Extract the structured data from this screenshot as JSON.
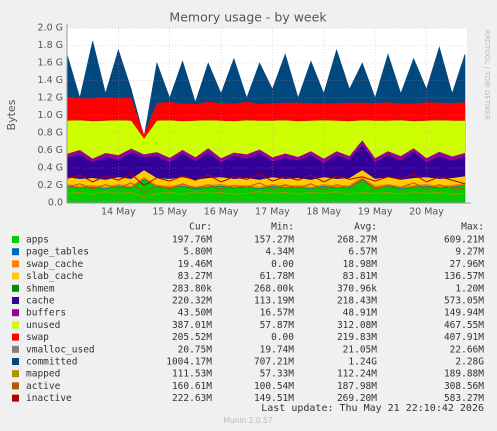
{
  "chart_data": {
    "type": "area",
    "title": "Memory usage - by week",
    "y_label": "Bytes",
    "side_text": "RRDTOOL / TOBI OETIKER",
    "last_update": "Last update: Thu May 21 22:10:42 2026",
    "footer": "Munin 2.0.57",
    "stat_headers": [
      "Cur:",
      "Min:",
      "Avg:",
      "Max:"
    ],
    "categories": [
      null,
      null,
      null,
      null,
      "14 May",
      null,
      null,
      null,
      "15 May",
      null,
      null,
      null,
      "16 May",
      null,
      null,
      null,
      "17 May",
      null,
      null,
      null,
      "18 May",
      null,
      null,
      null,
      "19 May",
      null,
      null,
      null,
      "20 May",
      null,
      null,
      null
    ],
    "ylim": [
      0,
      2.0
    ],
    "yticks": [
      {
        "value": 0,
        "label": "0.0"
      },
      {
        "value": 0.2,
        "label": "0.2 G"
      },
      {
        "value": 0.4,
        "label": "0.4 G"
      },
      {
        "value": 0.6,
        "label": "0.6 G"
      },
      {
        "value": 0.8,
        "label": "0.8 G"
      },
      {
        "value": 1.0,
        "label": "1.0 G"
      },
      {
        "value": 1.2,
        "label": "1.2 G"
      },
      {
        "value": 1.4,
        "label": "1.4 G"
      },
      {
        "value": 1.6,
        "label": "1.6 G"
      },
      {
        "value": 1.8,
        "label": "1.8 G"
      },
      {
        "value": 2.0,
        "label": "2.0 G"
      }
    ],
    "grid": true,
    "series": [
      {
        "name": "apps",
        "color": "#00cc00",
        "draw": "stack",
        "cur": "197.76M",
        "min": "157.27M",
        "avg": "268.27M",
        "max": "609.21M",
        "values": [
          0.19,
          0.17,
          0.18,
          0.16,
          0.19,
          0.17,
          0.27,
          0.18,
          0.17,
          0.19,
          0.16,
          0.18,
          0.19,
          0.17,
          0.18,
          0.16,
          0.19,
          0.17,
          0.18,
          0.16,
          0.19,
          0.17,
          0.18,
          0.27,
          0.17,
          0.19,
          0.16,
          0.18,
          0.19,
          0.17,
          0.18,
          0.2
        ]
      },
      {
        "name": "page_tables",
        "color": "#0066b3",
        "draw": "stack",
        "cur": "5.80M",
        "min": "4.34M",
        "avg": "6.57M",
        "max": "9.27M",
        "values": [
          0.006,
          0.006,
          0.006,
          0.006,
          0.006,
          0.006,
          0.006,
          0.006,
          0.006,
          0.006,
          0.006,
          0.006,
          0.006,
          0.006,
          0.006,
          0.006,
          0.006,
          0.006,
          0.006,
          0.006,
          0.006,
          0.006,
          0.006,
          0.006,
          0.006,
          0.006,
          0.006,
          0.006,
          0.006,
          0.006,
          0.006,
          0.006
        ]
      },
      {
        "name": "swap_cache",
        "color": "#ff8000",
        "draw": "stack",
        "cur": "19.46M",
        "min": "0.00",
        "avg": "18.98M",
        "max": "27.96M",
        "values": [
          0.02,
          0.02,
          0.02,
          0.02,
          0.02,
          0.02,
          0.02,
          0.02,
          0.02,
          0.02,
          0.02,
          0.02,
          0.02,
          0.02,
          0.02,
          0.02,
          0.02,
          0.02,
          0.02,
          0.02,
          0.02,
          0.02,
          0.02,
          0.02,
          0.02,
          0.02,
          0.02,
          0.02,
          0.02,
          0.02,
          0.02,
          0.02
        ]
      },
      {
        "name": "slab_cache",
        "color": "#ffcc00",
        "draw": "stack",
        "cur": "83.27M",
        "min": "61.78M",
        "avg": "83.81M",
        "max": "136.57M",
        "values": [
          0.08,
          0.08,
          0.08,
          0.08,
          0.08,
          0.08,
          0.08,
          0.08,
          0.08,
          0.08,
          0.08,
          0.08,
          0.08,
          0.08,
          0.08,
          0.08,
          0.08,
          0.08,
          0.08,
          0.08,
          0.08,
          0.08,
          0.08,
          0.08,
          0.08,
          0.08,
          0.08,
          0.08,
          0.08,
          0.08,
          0.08,
          0.08
        ]
      },
      {
        "name": "shmem",
        "color": "#008f00",
        "draw": "stack",
        "cur": "283.80k",
        "min": "268.00k",
        "avg": "370.96k",
        "max": "1.20M",
        "values": [
          0.0003,
          0.0003,
          0.0003,
          0.0003,
          0.0003,
          0.0003,
          0.0003,
          0.0003,
          0.0003,
          0.0003,
          0.0003,
          0.0003,
          0.0003,
          0.0003,
          0.0003,
          0.0003,
          0.0003,
          0.0003,
          0.0003,
          0.0003,
          0.0003,
          0.0003,
          0.0003,
          0.0003,
          0.0003,
          0.0003,
          0.0003,
          0.0003,
          0.0003,
          0.0003,
          0.0003,
          0.0003
        ]
      },
      {
        "name": "cache",
        "color": "#330099",
        "draw": "stack",
        "cur": "220.32M",
        "min": "113.19M",
        "avg": "218.43M",
        "max": "573.05M",
        "values": [
          0.22,
          0.28,
          0.18,
          0.26,
          0.2,
          0.3,
          0.15,
          0.25,
          0.19,
          0.27,
          0.21,
          0.29,
          0.17,
          0.26,
          0.22,
          0.3,
          0.18,
          0.24,
          0.2,
          0.28,
          0.16,
          0.27,
          0.21,
          0.29,
          0.19,
          0.25,
          0.22,
          0.3,
          0.17,
          0.26,
          0.2,
          0.22
        ]
      },
      {
        "name": "buffers",
        "color": "#990099",
        "draw": "stack",
        "cur": "43.50M",
        "min": "16.57M",
        "avg": "48.91M",
        "max": "149.94M",
        "values": [
          0.045,
          0.05,
          0.04,
          0.045,
          0.05,
          0.045,
          0.03,
          0.045,
          0.05,
          0.04,
          0.045,
          0.05,
          0.045,
          0.04,
          0.05,
          0.045,
          0.045,
          0.05,
          0.04,
          0.045,
          0.05,
          0.045,
          0.04,
          0.05,
          0.045,
          0.045,
          0.05,
          0.04,
          0.045,
          0.05,
          0.045,
          0.045
        ]
      },
      {
        "name": "unused",
        "color": "#ccff00",
        "draw": "stack",
        "cur": "387.01M",
        "min": "57.87M",
        "avg": "312.08M",
        "max": "467.55M",
        "values": [
          0.38,
          0.34,
          0.43,
          0.37,
          0.4,
          0.32,
          0.18,
          0.36,
          0.43,
          0.33,
          0.42,
          0.32,
          0.43,
          0.36,
          0.39,
          0.33,
          0.42,
          0.38,
          0.41,
          0.35,
          0.44,
          0.35,
          0.4,
          0.23,
          0.43,
          0.35,
          0.41,
          0.31,
          0.43,
          0.36,
          0.41,
          0.37
        ]
      },
      {
        "name": "swap",
        "color": "#ff0000",
        "draw": "stack",
        "cur": "205.52M",
        "min": "0.00",
        "avg": "219.83M",
        "max": "407.91M",
        "values": [
          0.27,
          0.25,
          0.26,
          0.27,
          0.25,
          0.26,
          0.05,
          0.2,
          0.21,
          0.2,
          0.19,
          0.21,
          0.2,
          0.2,
          0.21,
          0.19,
          0.2,
          0.2,
          0.21,
          0.2,
          0.19,
          0.2,
          0.21,
          0.2,
          0.2,
          0.21,
          0.19,
          0.2,
          0.21,
          0.2,
          0.2,
          0.21
        ]
      },
      {
        "name": "vmalloc_used",
        "color": "#808080",
        "draw": "line",
        "cur": "20.75M",
        "min": "19.74M",
        "avg": "21.05M",
        "max": "22.66M",
        "values": [
          0.02,
          0.02,
          0.02,
          0.02,
          0.02,
          0.02,
          0.02,
          0.02,
          0.02,
          0.02,
          0.02,
          0.02,
          0.02,
          0.02,
          0.02,
          0.02,
          0.02,
          0.02,
          0.02,
          0.02,
          0.02,
          0.02,
          0.02,
          0.02,
          0.02,
          0.02,
          0.02,
          0.02,
          0.02,
          0.02,
          0.02,
          0.02
        ]
      },
      {
        "name": "committed",
        "color": "#00487d",
        "draw": "back",
        "cur": "1004.17M",
        "min": "707.21M",
        "avg": "1.24G",
        "max": "2.28G",
        "values": [
          1.7,
          1.2,
          1.85,
          1.25,
          1.75,
          1.3,
          0.75,
          1.6,
          1.2,
          1.62,
          1.15,
          1.6,
          1.25,
          1.65,
          1.2,
          1.6,
          1.3,
          1.7,
          1.2,
          1.62,
          1.25,
          1.75,
          1.3,
          1.6,
          1.2,
          1.7,
          1.25,
          1.65,
          1.3,
          1.78,
          1.25,
          1.7
        ]
      },
      {
        "name": "mapped",
        "color": "#b38f00",
        "draw": "line",
        "cur": "111.53M",
        "min": "57.33M",
        "avg": "112.24M",
        "max": "189.88M",
        "values": [
          0.11,
          0.12,
          0.1,
          0.13,
          0.11,
          0.12,
          0.07,
          0.11,
          0.12,
          0.1,
          0.13,
          0.11,
          0.12,
          0.1,
          0.11,
          0.13,
          0.11,
          0.12,
          0.1,
          0.12,
          0.11,
          0.13,
          0.1,
          0.12,
          0.11,
          0.12,
          0.1,
          0.13,
          0.11,
          0.12,
          0.1,
          0.11
        ]
      },
      {
        "name": "active",
        "color": "#b35a00",
        "draw": "line",
        "cur": "160.61M",
        "min": "100.54M",
        "avg": "187.98M",
        "max": "308.56M",
        "values": [
          0.18,
          0.22,
          0.16,
          0.21,
          0.17,
          0.23,
          0.12,
          0.2,
          0.16,
          0.22,
          0.17,
          0.21,
          0.16,
          0.2,
          0.18,
          0.23,
          0.16,
          0.21,
          0.17,
          0.22,
          0.15,
          0.21,
          0.17,
          0.26,
          0.16,
          0.2,
          0.18,
          0.23,
          0.16,
          0.21,
          0.17,
          0.16
        ]
      },
      {
        "name": "inactive",
        "color": "#b30000",
        "draw": "line",
        "cur": "222.63M",
        "min": "149.51M",
        "avg": "269.20M",
        "max": "583.27M",
        "values": [
          0.28,
          0.32,
          0.24,
          0.31,
          0.26,
          0.33,
          0.2,
          0.29,
          0.25,
          0.31,
          0.26,
          0.32,
          0.24,
          0.3,
          0.27,
          0.33,
          0.25,
          0.3,
          0.26,
          0.32,
          0.24,
          0.31,
          0.27,
          0.3,
          0.25,
          0.3,
          0.27,
          0.33,
          0.24,
          0.3,
          0.26,
          0.22
        ]
      }
    ]
  }
}
